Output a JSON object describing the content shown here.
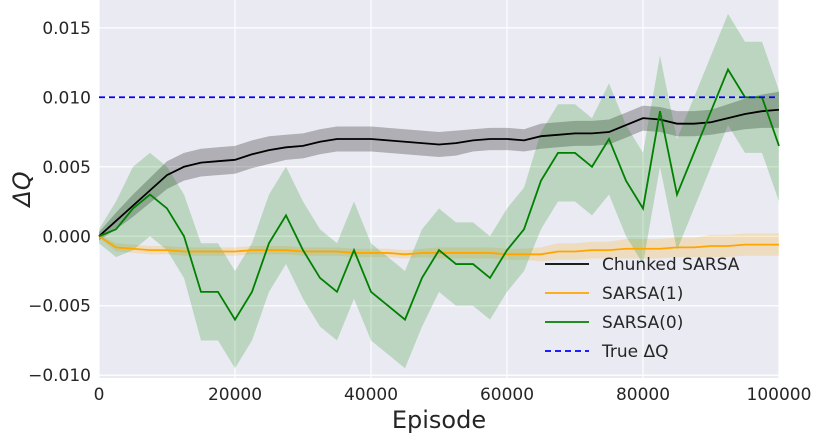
{
  "chart_data": {
    "type": "line",
    "title": "",
    "xlabel": "Episode",
    "ylabel": "ΔQ",
    "xlim": [
      0,
      100000
    ],
    "ylim": [
      -0.0102,
      0.017
    ],
    "xticks": [
      "0",
      "20000",
      "40000",
      "60000",
      "80000",
      "100000"
    ],
    "xtick_values": [
      0,
      20000,
      40000,
      60000,
      80000,
      100000
    ],
    "yticks": [
      "−0.010",
      "−0.005",
      "0.000",
      "0.005",
      "0.010",
      "0.015"
    ],
    "ytick_values": [
      -0.01,
      -0.005,
      0,
      0.005,
      0.01,
      0.015
    ],
    "grid": true,
    "legend_position": "lower-right",
    "background": "#eaeaf2",
    "x": [
      0,
      2500,
      5000,
      7500,
      10000,
      12500,
      15000,
      17500,
      20000,
      22500,
      25000,
      27500,
      30000,
      32500,
      35000,
      37500,
      40000,
      42500,
      45000,
      47500,
      50000,
      52500,
      55000,
      57500,
      60000,
      62500,
      65000,
      67500,
      70000,
      72500,
      75000,
      77500,
      80000,
      82500,
      85000,
      87500,
      90000,
      92500,
      95000,
      97500,
      100000
    ],
    "series": [
      {
        "name": "Chunked SARSA",
        "color": "#000000",
        "style": "solid",
        "values": [
          0,
          0.0011,
          0.0022,
          0.0033,
          0.0044,
          0.005,
          0.0053,
          0.0054,
          0.0055,
          0.0059,
          0.0062,
          0.0064,
          0.0065,
          0.0068,
          0.007,
          0.007,
          0.007,
          0.0069,
          0.0068,
          0.0067,
          0.0066,
          0.0067,
          0.0069,
          0.007,
          0.007,
          0.0069,
          0.0072,
          0.0073,
          0.0074,
          0.0074,
          0.0075,
          0.008,
          0.0085,
          0.0084,
          0.0081,
          0.0081,
          0.0082,
          0.0085,
          0.0088,
          0.009,
          0.0091
        ],
        "band": [
          0.0003,
          0.0006,
          0.0008,
          0.0009,
          0.001,
          0.001,
          0.001,
          0.001,
          0.001,
          0.001,
          0.001,
          0.0009,
          0.0009,
          0.0009,
          0.0009,
          0.0009,
          0.0009,
          0.0009,
          0.0009,
          0.0009,
          0.0009,
          0.0009,
          0.0008,
          0.0008,
          0.0008,
          0.0008,
          0.0009,
          0.0009,
          0.0009,
          0.0009,
          0.0009,
          0.0009,
          0.0009,
          0.0009,
          0.0009,
          0.0009,
          0.0009,
          0.001,
          0.0011,
          0.0012,
          0.0013
        ]
      },
      {
        "name": "SARSA(1)",
        "color": "#ffa500",
        "style": "solid",
        "values": [
          0,
          -0.0008,
          -0.0009,
          -0.001,
          -0.001,
          -0.0011,
          -0.0011,
          -0.0011,
          -0.0011,
          -0.001,
          -0.001,
          -0.001,
          -0.0011,
          -0.0011,
          -0.0011,
          -0.0012,
          -0.0012,
          -0.0012,
          -0.0013,
          -0.0012,
          -0.0012,
          -0.0012,
          -0.0012,
          -0.0012,
          -0.0013,
          -0.0013,
          -0.0013,
          -0.0011,
          -0.0011,
          -0.001,
          -0.001,
          -0.0009,
          -0.0009,
          -0.0009,
          -0.0008,
          -0.0008,
          -0.0007,
          -0.0007,
          -0.0006,
          -0.0006,
          -0.0006
        ],
        "band": [
          0.0001,
          0.0003,
          0.0003,
          0.0003,
          0.0003,
          0.0003,
          0.0003,
          0.0003,
          0.0003,
          0.0003,
          0.0003,
          0.0003,
          0.0003,
          0.0003,
          0.0003,
          0.0003,
          0.0003,
          0.0003,
          0.0003,
          0.0003,
          0.0004,
          0.0004,
          0.0004,
          0.0004,
          0.0004,
          0.0004,
          0.0005,
          0.0006,
          0.0006,
          0.0006,
          0.0006,
          0.0007,
          0.0007,
          0.0007,
          0.0007,
          0.0007,
          0.0008,
          0.0008,
          0.0008,
          0.0008,
          0.0008
        ]
      },
      {
        "name": "SARSA(0)",
        "color": "#008000",
        "style": "solid",
        "values": [
          0,
          0.0005,
          0.002,
          0.003,
          0.002,
          0,
          -0.004,
          -0.004,
          -0.006,
          -0.004,
          -0.0005,
          0.0015,
          -0.001,
          -0.003,
          -0.004,
          -0.001,
          -0.004,
          -0.005,
          -0.006,
          -0.003,
          -0.001,
          -0.002,
          -0.002,
          -0.003,
          -0.001,
          0.0005,
          0.004,
          0.006,
          0.006,
          0.005,
          0.007,
          0.004,
          0.002,
          0.009,
          0.003,
          0.006,
          0.009,
          0.012,
          0.01,
          0.01,
          0.0065
        ],
        "band": [
          0.0005,
          0.002,
          0.003,
          0.003,
          0.003,
          0.003,
          0.0035,
          0.0035,
          0.0035,
          0.0035,
          0.0035,
          0.0035,
          0.0035,
          0.0035,
          0.0035,
          0.0035,
          0.0035,
          0.0035,
          0.0035,
          0.0035,
          0.003,
          0.003,
          0.003,
          0.003,
          0.003,
          0.003,
          0.0035,
          0.0035,
          0.0035,
          0.0035,
          0.004,
          0.004,
          0.004,
          0.004,
          0.004,
          0.004,
          0.004,
          0.004,
          0.004,
          0.004,
          0.004
        ]
      },
      {
        "name": "True ΔQ",
        "color": "#0000ff",
        "style": "dashed",
        "values": [
          0.01,
          0.01,
          0.01,
          0.01,
          0.01,
          0.01,
          0.01,
          0.01,
          0.01,
          0.01,
          0.01,
          0.01,
          0.01,
          0.01,
          0.01,
          0.01,
          0.01,
          0.01,
          0.01,
          0.01,
          0.01,
          0.01,
          0.01,
          0.01,
          0.01,
          0.01,
          0.01,
          0.01,
          0.01,
          0.01,
          0.01,
          0.01,
          0.01,
          0.01,
          0.01,
          0.01,
          0.01,
          0.01,
          0.01,
          0.01,
          0.01
        ]
      }
    ]
  }
}
